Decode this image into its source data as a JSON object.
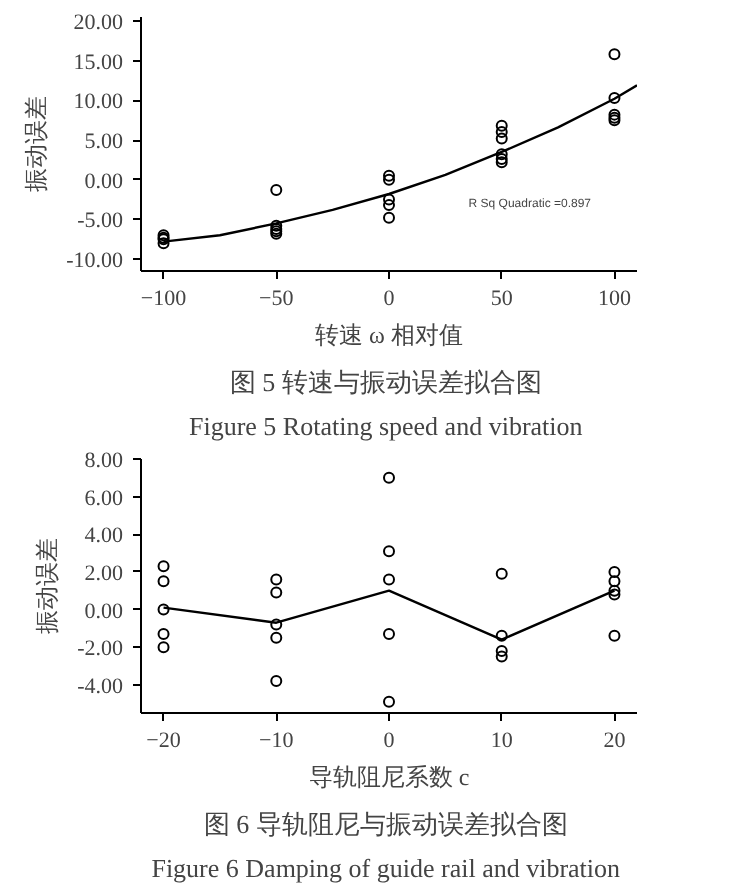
{
  "chart_data": [
    {
      "type": "scatter",
      "title": "图 5  转速与振动误差拟合图",
      "subtitle": "Figure 5  Rotating speed and vibration",
      "xlabel": "转速 ω 相对值",
      "ylabel": "振动误差",
      "xlim": [
        -110,
        110
      ],
      "ylim": [
        -11.5,
        20.5
      ],
      "xticks": [
        -100,
        -50,
        0,
        50,
        100
      ],
      "yticks": [
        {
          "value": -10,
          "label": "-10.00"
        },
        {
          "value": -5,
          "label": "-5.00"
        },
        {
          "value": 0,
          "label": "0.00"
        },
        {
          "value": 5,
          "label": "5.00"
        },
        {
          "value": 10,
          "label": "10.00"
        },
        {
          "value": 15,
          "label": "15.00"
        },
        {
          "value": 20,
          "label": "20.00"
        }
      ],
      "grid": false,
      "annotations": [
        "R Sq Quadratic =0.897"
      ],
      "series": [
        {
          "marker": "circle",
          "color": "#000000",
          "x": [
            -100,
            -100,
            -100,
            -100,
            -50,
            -50,
            -50,
            -50,
            -50,
            0,
            0,
            0,
            0,
            0,
            50,
            50,
            50,
            50,
            50,
            50,
            100,
            100,
            100,
            100,
            100
          ],
          "values": [
            -7,
            -7.5,
            -8,
            -7.3,
            -1.3,
            -5.8,
            -6.2,
            -6.5,
            -6.8,
            0.5,
            0,
            -2.5,
            -3.2,
            -4.8,
            6.8,
            6,
            5.2,
            3.2,
            2.6,
            2.2,
            15.8,
            10.3,
            8.2,
            7.8,
            7.5
          ]
        },
        {
          "type": "line",
          "color": "#000000",
          "x": [
            -100,
            -75,
            -50,
            -25,
            0,
            25,
            50,
            75,
            100,
            110
          ],
          "values": [
            -7.8,
            -7.0,
            -5.5,
            -3.8,
            -1.8,
            0.6,
            3.5,
            6.6,
            10.2,
            11.9
          ]
        }
      ]
    },
    {
      "type": "scatter",
      "title": "图 6  导轨阻尼与振动误差拟合图",
      "subtitle": "Figure 6  Damping of guide rail and vibration",
      "xlabel": "导轨阻尼系数 c",
      "ylabel": "振动误差",
      "xlim": [
        -22,
        22
      ],
      "ylim": [
        -5.5,
        8
      ],
      "xticks": [
        -20,
        -10,
        0,
        10,
        20
      ],
      "yticks": [
        {
          "value": -4,
          "label": "-4.00"
        },
        {
          "value": -2,
          "label": "-2.00"
        },
        {
          "value": 0,
          "label": "0.00"
        },
        {
          "value": 2,
          "label": "2.00"
        },
        {
          "value": 4,
          "label": "4.00"
        },
        {
          "value": 6,
          "label": "6.00"
        },
        {
          "value": 8,
          "label": "8.00"
        }
      ],
      "grid": false,
      "series": [
        {
          "marker": "circle",
          "color": "#000000",
          "x": [
            -20,
            -20,
            -20,
            -20,
            -20,
            -10,
            -10,
            -10,
            -10,
            -10,
            0,
            0,
            0,
            0,
            0,
            10,
            10,
            10,
            10,
            20,
            20,
            20,
            20,
            20
          ],
          "values": [
            2.3,
            1.5,
            0,
            -1.3,
            -2,
            1.6,
            0.9,
            -0.8,
            -1.5,
            -3.8,
            7,
            3.1,
            1.6,
            -1.3,
            -4.9,
            1.9,
            -1.4,
            -2.2,
            -2.5,
            2,
            1.5,
            1.0,
            0.8,
            -1.4
          ]
        },
        {
          "type": "line",
          "color": "#000000",
          "x": [
            -20,
            -10,
            0,
            10,
            20
          ],
          "values": [
            0.1,
            -0.7,
            1.0,
            -1.6,
            1.0
          ]
        }
      ]
    }
  ]
}
